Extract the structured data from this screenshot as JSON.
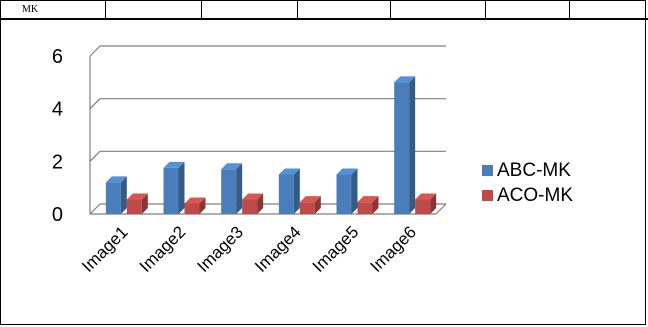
{
  "table_fragment": {
    "visible_text": "MK"
  },
  "chart_data": {
    "type": "bar",
    "categories": [
      "Image1",
      "Image2",
      "Image3",
      "Image4",
      "Image5",
      "Image6"
    ],
    "series": [
      {
        "name": "ABC-MK",
        "values": [
          1.2,
          1.75,
          1.7,
          1.5,
          1.5,
          5.0
        ],
        "color": "#4a7ebb"
      },
      {
        "name": "ACO-MK",
        "values": [
          0.55,
          0.4,
          0.55,
          0.45,
          0.45,
          0.55
        ],
        "color": "#be4b48"
      }
    ],
    "yticks": [
      "0",
      "2",
      "4",
      "6"
    ],
    "ylim": [
      0,
      6
    ],
    "grid": true,
    "legend_position": "right",
    "title": "",
    "xlabel": "",
    "ylabel": ""
  }
}
